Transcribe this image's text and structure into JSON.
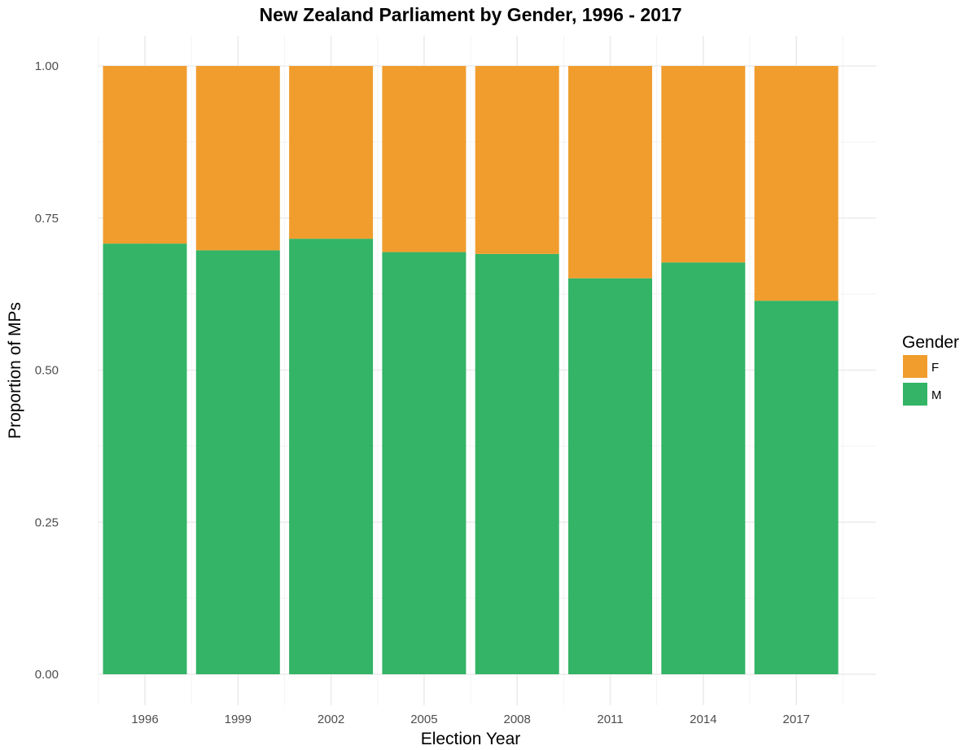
{
  "chart_data": {
    "type": "bar",
    "stacked": true,
    "title": "New Zealand Parliament by Gender, 1996 - 2017",
    "xlabel": "Election Year",
    "ylabel": "Proportion of MPs",
    "categories": [
      "1996",
      "1999",
      "2002",
      "2005",
      "2008",
      "2011",
      "2014",
      "2017"
    ],
    "ylim": [
      0,
      1
    ],
    "yticks": [
      "0.00",
      "0.25",
      "0.50",
      "0.75",
      "1.00"
    ],
    "grid": true,
    "legend": {
      "title": "Gender",
      "placement": "right"
    },
    "series": [
      {
        "name": "M",
        "color": "#33b466",
        "values": [
          0.708,
          0.697,
          0.716,
          0.694,
          0.691,
          0.651,
          0.677,
          0.614
        ]
      },
      {
        "name": "F",
        "color": "#f09d2e",
        "values": [
          0.292,
          0.303,
          0.284,
          0.306,
          0.309,
          0.349,
          0.323,
          0.386
        ]
      }
    ]
  }
}
